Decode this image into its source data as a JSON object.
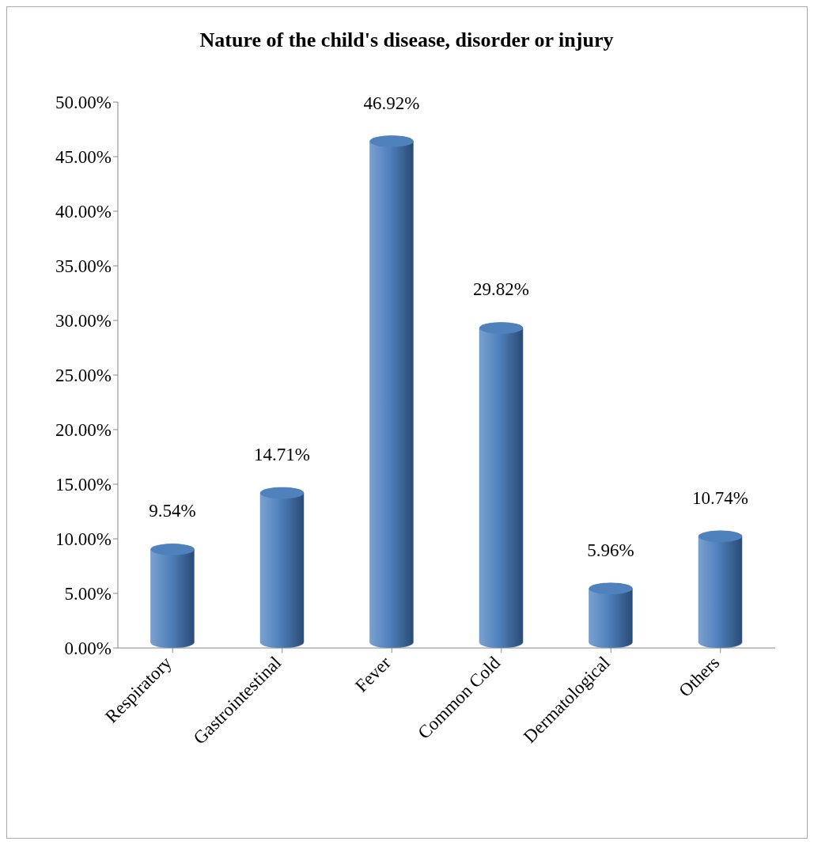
{
  "chart_data": {
    "type": "bar",
    "title": "Nature of the child's disease, disorder or injury",
    "categories": [
      "Respiratory",
      "Gastrointestinal",
      "Fever",
      "Common Cold",
      "Dermatological",
      "Others"
    ],
    "values": [
      9.54,
      14.71,
      46.92,
      29.82,
      5.96,
      10.74
    ],
    "value_labels": [
      "9.54%",
      "14.71%",
      "46.92%",
      "29.82%",
      "5.96%",
      "10.74%"
    ],
    "color": "#4f81bd",
    "ylim": [
      0,
      50
    ],
    "yticks": [
      {
        "value": 0,
        "label": "0.00%"
      },
      {
        "value": 5,
        "label": "5.00%"
      },
      {
        "value": 10,
        "label": "10.00%"
      },
      {
        "value": 15,
        "label": "15.00%"
      },
      {
        "value": 20,
        "label": "20.00%"
      },
      {
        "value": 25,
        "label": "25.00%"
      },
      {
        "value": 30,
        "label": "30.00%"
      },
      {
        "value": 35,
        "label": "35.00%"
      },
      {
        "value": 40,
        "label": "40.00%"
      },
      {
        "value": 45,
        "label": "45.00%"
      },
      {
        "value": 50,
        "label": "50.00%"
      }
    ],
    "grid": false,
    "legend": false
  }
}
